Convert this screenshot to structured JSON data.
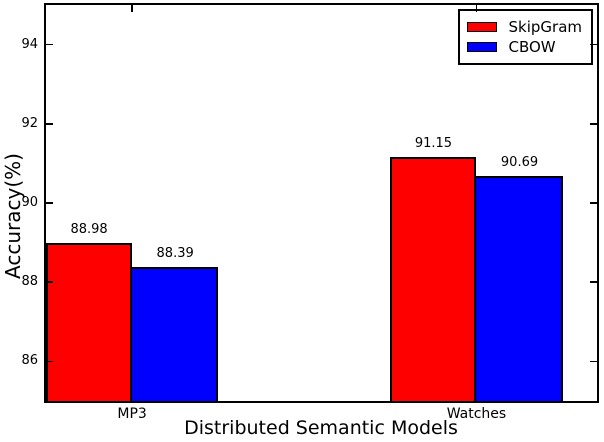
{
  "chart_data": {
    "type": "bar",
    "title": "",
    "xlabel": "Distributed Semantic Models",
    "ylabel": "Accuracy(%)",
    "categories": [
      "MP3",
      "Watches"
    ],
    "series": [
      {
        "name": "SkipGram",
        "color": "#ff0000",
        "values": [
          88.98,
          91.15
        ]
      },
      {
        "name": "CBOW",
        "color": "#0000ff",
        "values": [
          88.39,
          90.69
        ]
      }
    ],
    "value_labels": [
      [
        "88.98",
        "91.15"
      ],
      [
        "88.39",
        "90.69"
      ]
    ],
    "ylim": [
      85,
      95
    ],
    "yticks": [
      86,
      88,
      90,
      92,
      94
    ],
    "xlim": [
      0,
      1.6
    ],
    "group_x": [
      0,
      1
    ],
    "bar_width_data": 0.25,
    "legend": {
      "position": "upper-right",
      "entries": [
        "SkipGram",
        "CBOW"
      ]
    },
    "grid": false,
    "tick_direction": "in",
    "axis_color": "#000000",
    "background_color": "#ffffff"
  }
}
